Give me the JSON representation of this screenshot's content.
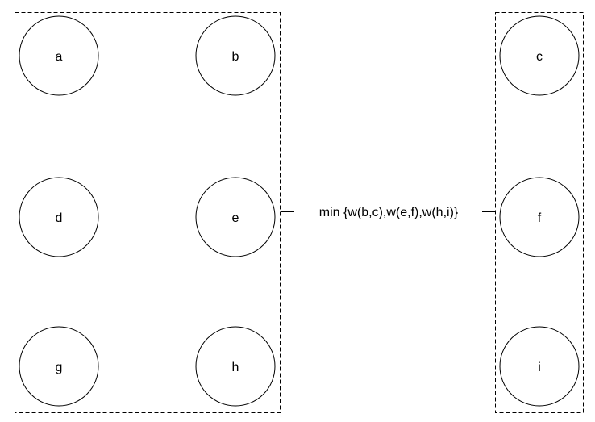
{
  "groups": {
    "left": {
      "nodes": {
        "a": "a",
        "b": "b",
        "d": "d",
        "e": "e",
        "g": "g",
        "h": "h"
      }
    },
    "right": {
      "nodes": {
        "c": "c",
        "f": "f",
        "i": "i"
      }
    }
  },
  "connection": {
    "label": "min {w(b,c),w(e,f),w(h,i)}"
  }
}
